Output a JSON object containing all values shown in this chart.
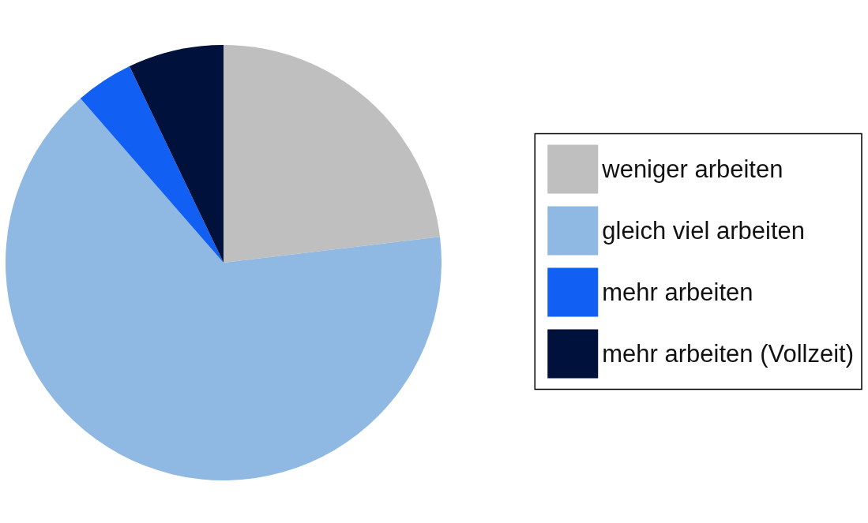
{
  "chart_data": {
    "type": "pie",
    "categories": [
      "weniger arbeiten",
      "gleich viel arbeiten",
      "mehr arbeiten",
      "mehr arbeiten (Vollzeit)"
    ],
    "values": [
      23.1,
      65.5,
      4.3,
      7.1
    ],
    "colors": [
      "#bfbfbf",
      "#8fb8e3",
      "#1160f3",
      "#00113c"
    ],
    "legend": "right"
  }
}
